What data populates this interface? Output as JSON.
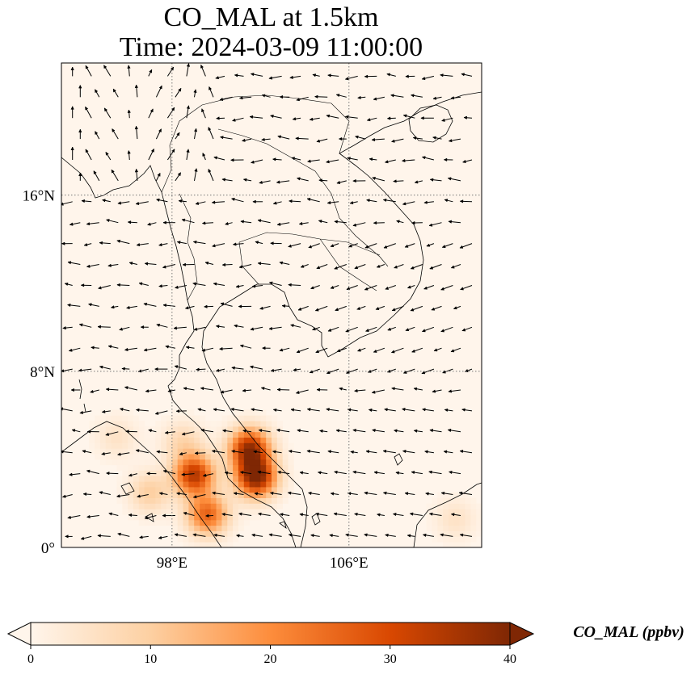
{
  "title": {
    "line1": "CO_MAL at 1.5km",
    "line2": "Time: 2024-03-09 11:00:00"
  },
  "axes": {
    "lat_ticks": [
      {
        "value": 16,
        "label": "16°N"
      },
      {
        "value": 8,
        "label": "8°N"
      },
      {
        "value": 0,
        "label": "0°"
      }
    ],
    "lon_ticks": [
      {
        "value": 98,
        "label": "98°E"
      },
      {
        "value": 106,
        "label": "106°E"
      }
    ],
    "lon_range": [
      93,
      112
    ],
    "lat_range": [
      0,
      22
    ],
    "gridlines": "dotted"
  },
  "colorbar": {
    "label": "CO_MAL (ppbv)",
    "ticks": [
      "0",
      "10",
      "20",
      "30",
      "40"
    ],
    "range": [
      0,
      40
    ],
    "colormap": [
      "#fff5eb",
      "#fdd0a2",
      "#fd8d3c",
      "#d94801",
      "#7f2704"
    ],
    "extend": "both"
  },
  "chart_data": {
    "type": "heatmap",
    "title": "CO_MAL at 1.5km\nTime: 2024-03-09 11:00:00",
    "variable": "CO_MAL",
    "units": "ppbv",
    "vmin": 0,
    "vmax": 40,
    "xlabel": "",
    "ylabel": "",
    "xlim": [
      93,
      112
    ],
    "ylim": [
      0,
      22
    ],
    "plumes": [
      {
        "lon": 101.8,
        "lat": 3.2,
        "peak": 40
      },
      {
        "lon": 101.5,
        "lat": 4.5,
        "peak": 36
      },
      {
        "lon": 99.0,
        "lat": 3.3,
        "peak": 34
      },
      {
        "lon": 99.6,
        "lat": 1.5,
        "peak": 26
      },
      {
        "lon": 98.5,
        "lat": 4.8,
        "peak": 8
      },
      {
        "lon": 97.0,
        "lat": 2.5,
        "peak": 10
      },
      {
        "lon": 95.5,
        "lat": 5.0,
        "peak": 5
      },
      {
        "lon": 110.8,
        "lat": 1.3,
        "peak": 5
      }
    ],
    "overlay": "wind vectors (quiver)"
  }
}
